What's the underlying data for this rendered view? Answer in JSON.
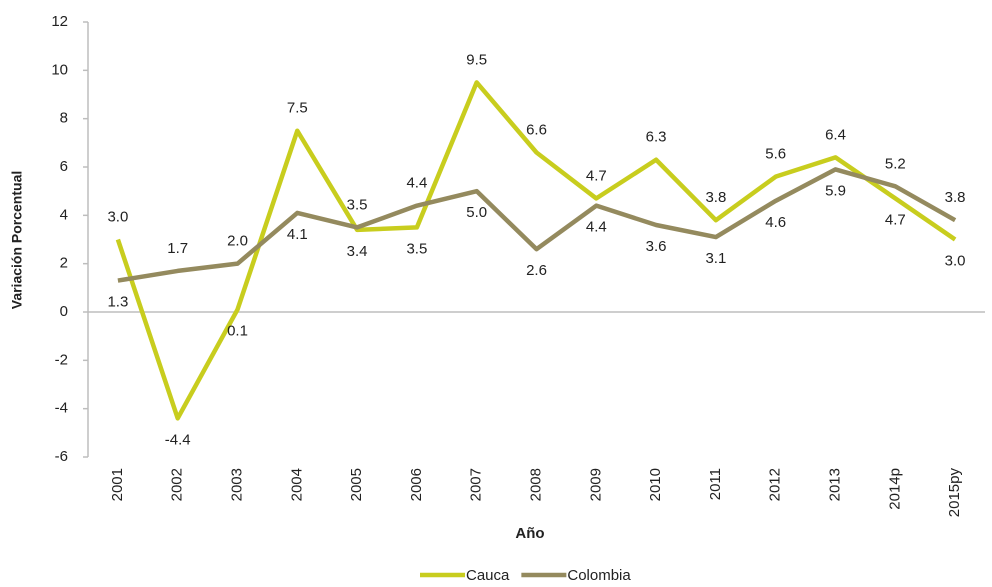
{
  "chart_data": {
    "type": "line",
    "x_label": "Año",
    "y_label": "Variación Porcentual",
    "categories": [
      "2001",
      "2002",
      "2003",
      "2004",
      "2005",
      "2006",
      "2007",
      "2008",
      "2009",
      "2010",
      "2011",
      "2012",
      "2013",
      "2014p",
      "2015py"
    ],
    "series": [
      {
        "name": "Cauca",
        "color": "#c8cd1e",
        "values": [
          3.0,
          -4.4,
          0.1,
          7.5,
          3.4,
          3.5,
          9.5,
          6.6,
          4.7,
          6.3,
          3.8,
          5.6,
          6.4,
          4.7,
          3.0
        ],
        "value_labels": [
          "3.0",
          "-4.4",
          "0.1",
          "7.5",
          "3.4",
          "3.5",
          "9.5",
          "6.6",
          "4.7",
          "6.3",
          "3.8",
          "5.6",
          "6.4",
          "4.7",
          "3.0"
        ]
      },
      {
        "name": "Colombia",
        "color": "#948a5e",
        "values": [
          1.3,
          1.7,
          2.0,
          4.1,
          3.5,
          4.4,
          5.0,
          2.6,
          4.4,
          3.6,
          3.1,
          4.6,
          5.9,
          5.2,
          3.8
        ],
        "value_labels": [
          "1.3",
          "1.7",
          "2.0",
          "4.1",
          "3.5",
          "4.4",
          "5.0",
          "2.6",
          "4.4",
          "3.6",
          "3.1",
          "4.6",
          "5.9",
          "5.2",
          "3.8"
        ]
      }
    ],
    "ylim": [
      -6,
      12
    ],
    "yticks": [
      -6,
      -4,
      -2,
      0,
      2,
      4,
      6,
      8,
      10,
      12
    ],
    "legend": "bottom"
  }
}
